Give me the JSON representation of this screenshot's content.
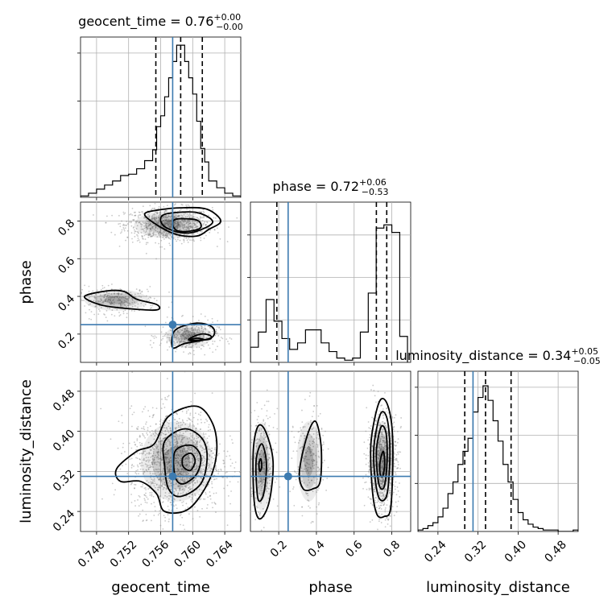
{
  "chart_data": {
    "type": "corner",
    "parameters": [
      "geocent_time",
      "phase",
      "luminosity_distance"
    ],
    "truth": {
      "geocent_time": 0.7575,
      "phase": 0.25,
      "luminosity_distance": 0.31
    },
    "colors": {
      "truth": "#3d7bb0",
      "hist": "#000000",
      "grid": "#b0b0b0",
      "points": "#888888"
    },
    "titles": [
      {
        "param": "geocent_time",
        "text": "geocent_time = 0.76",
        "plus": "+0.00",
        "minus": "−0.00"
      },
      {
        "param": "phase",
        "text": "phase = 0.72",
        "plus": "+0.06",
        "minus": "−0.53"
      },
      {
        "param": "luminosity_distance",
        "text": "luminosity_distance = 0.34",
        "plus": "+0.05",
        "minus": "−0.05"
      }
    ],
    "axes": {
      "geocent_time": {
        "range": [
          0.746,
          0.766
        ],
        "ticks": [
          0.748,
          0.752,
          0.756,
          0.76,
          0.764
        ],
        "tick_labels": [
          "0.748",
          "0.752",
          "0.756",
          "0.760",
          "0.764"
        ]
      },
      "phase": {
        "range": [
          0.05,
          0.9
        ],
        "ticks_x": [
          0.2,
          0.4,
          0.6,
          0.8
        ],
        "tick_labels_x": [
          "0.2",
          "0.4",
          "0.6",
          "0.8"
        ],
        "ticks_y": [
          0.2,
          0.4,
          0.6,
          0.8
        ],
        "tick_labels_y": [
          "0.2",
          "0.4",
          "0.6",
          "0.8"
        ]
      },
      "luminosity_distance": {
        "range": [
          0.2,
          0.52
        ],
        "ticks": [
          0.24,
          0.32,
          0.4,
          0.48
        ],
        "tick_labels": [
          "0.24",
          "0.32",
          "0.40",
          "0.48"
        ]
      }
    },
    "hist_geocent_time": {
      "edges": [
        0.746,
        0.747,
        0.748,
        0.749,
        0.75,
        0.751,
        0.752,
        0.753,
        0.754,
        0.755,
        0.7555,
        0.756,
        0.7565,
        0.757,
        0.7575,
        0.758,
        0.7585,
        0.759,
        0.7595,
        0.76,
        0.7605,
        0.761,
        0.7615,
        0.762,
        0.763,
        0.764,
        0.765,
        0.766
      ],
      "counts": [
        1,
        3,
        6,
        9,
        12,
        16,
        17,
        21,
        27,
        35,
        52,
        60,
        74,
        88,
        100,
        112,
        112,
        100,
        88,
        76,
        56,
        36,
        26,
        12,
        7,
        3,
        1
      ],
      "quantile_lines": [
        0.7554,
        0.7585,
        0.7612
      ],
      "ylim": [
        0,
        118
      ]
    },
    "hist_phase": {
      "edges": [
        0.05,
        0.092,
        0.133,
        0.175,
        0.217,
        0.258,
        0.3,
        0.342,
        0.383,
        0.425,
        0.467,
        0.508,
        0.55,
        0.592,
        0.633,
        0.675,
        0.717,
        0.758,
        0.8,
        0.842,
        0.883
      ],
      "counts": [
        14,
        28,
        58,
        38,
        22,
        12,
        18,
        30,
        30,
        18,
        10,
        4,
        2,
        4,
        28,
        64,
        124,
        127,
        120,
        24
      ],
      "quantile_lines": [
        0.19,
        0.718,
        0.773
      ],
      "ylim": [
        0,
        148
      ]
    },
    "hist_luminosity_distance": {
      "edges": [
        0.2,
        0.21,
        0.22,
        0.23,
        0.24,
        0.25,
        0.26,
        0.27,
        0.28,
        0.29,
        0.3,
        0.31,
        0.32,
        0.33,
        0.34,
        0.35,
        0.36,
        0.37,
        0.38,
        0.39,
        0.4,
        0.41,
        0.42,
        0.43,
        0.44,
        0.45,
        0.46,
        0.47,
        0.48,
        0.49,
        0.5,
        0.51,
        0.52
      ],
      "counts": [
        1,
        2,
        4,
        6,
        10,
        16,
        26,
        34,
        46,
        55,
        64,
        82,
        92,
        100,
        90,
        76,
        62,
        46,
        34,
        22,
        13,
        8,
        5,
        3,
        2,
        1,
        1,
        1,
        0,
        0,
        0,
        1
      ],
      "quantile_lines": [
        0.2935,
        0.335,
        0.386
      ],
      "ylim": [
        0,
        110
      ]
    },
    "contours_phase_vs_geocent_time": [
      [
        [
          0.7555,
          0.857
        ],
        [
          0.7588,
          0.87
        ],
        [
          0.7618,
          0.862
        ],
        [
          0.7635,
          0.8
        ],
        [
          0.762,
          0.755
        ],
        [
          0.7605,
          0.72
        ],
        [
          0.758,
          0.728
        ],
        [
          0.7555,
          0.78
        ],
        [
          0.754,
          0.835
        ]
      ],
      [
        [
          0.757,
          0.84
        ],
        [
          0.7605,
          0.845
        ],
        [
          0.7625,
          0.795
        ],
        [
          0.7605,
          0.745
        ],
        [
          0.7585,
          0.738
        ],
        [
          0.7565,
          0.77
        ],
        [
          0.756,
          0.815
        ]
      ],
      [
        [
          0.758,
          0.81
        ],
        [
          0.7605,
          0.805
        ],
        [
          0.761,
          0.765
        ],
        [
          0.7595,
          0.745
        ],
        [
          0.758,
          0.75
        ],
        [
          0.7575,
          0.785
        ]
      ],
      [
        [
          0.7465,
          0.4
        ],
        [
          0.7495,
          0.43
        ],
        [
          0.7515,
          0.425
        ],
        [
          0.753,
          0.385
        ],
        [
          0.7555,
          0.357
        ],
        [
          0.7555,
          0.328
        ],
        [
          0.752,
          0.335
        ],
        [
          0.7485,
          0.355
        ]
      ],
      [
        [
          0.7575,
          0.128
        ],
        [
          0.7578,
          0.22
        ],
        [
          0.7605,
          0.258
        ],
        [
          0.7625,
          0.235
        ],
        [
          0.7623,
          0.18
        ],
        [
          0.759,
          0.15
        ]
      ],
      [
        [
          0.7595,
          0.17
        ],
        [
          0.761,
          0.2
        ],
        [
          0.7622,
          0.192
        ],
        [
          0.762,
          0.172
        ]
      ],
      [
        [
          0.7595,
          0.168
        ],
        [
          0.7605,
          0.178
        ],
        [
          0.7613,
          0.172
        ],
        [
          0.7605,
          0.163
        ]
      ]
    ],
    "contours_luminosity_distance_vs_geocent_time": [
      [
        [
          0.7505,
          0.325
        ],
        [
          0.753,
          0.36
        ],
        [
          0.7552,
          0.375
        ],
        [
          0.757,
          0.43
        ],
        [
          0.7605,
          0.45
        ],
        [
          0.7625,
          0.415
        ],
        [
          0.763,
          0.36
        ],
        [
          0.762,
          0.3
        ],
        [
          0.7595,
          0.245
        ],
        [
          0.7565,
          0.24
        ],
        [
          0.7555,
          0.275
        ],
        [
          0.7535,
          0.3
        ],
        [
          0.751,
          0.3
        ]
      ],
      [
        [
          0.7565,
          0.38
        ],
        [
          0.759,
          0.405
        ],
        [
          0.7612,
          0.385
        ],
        [
          0.7618,
          0.345
        ],
        [
          0.761,
          0.295
        ],
        [
          0.7585,
          0.27
        ],
        [
          0.757,
          0.285
        ],
        [
          0.7565,
          0.33
        ]
      ],
      [
        [
          0.7578,
          0.36
        ],
        [
          0.7598,
          0.372
        ],
        [
          0.761,
          0.35
        ],
        [
          0.7605,
          0.315
        ],
        [
          0.7588,
          0.295
        ],
        [
          0.7578,
          0.31
        ]
      ],
      [
        [
          0.7588,
          0.348
        ],
        [
          0.7598,
          0.356
        ],
        [
          0.7603,
          0.34
        ],
        [
          0.7597,
          0.322
        ],
        [
          0.7588,
          0.33
        ]
      ]
    ],
    "contours_luminosity_distance_vs_phase": [
      [
        [
          0.065,
          0.36
        ],
        [
          0.09,
          0.41
        ],
        [
          0.13,
          0.4
        ],
        [
          0.17,
          0.34
        ],
        [
          0.15,
          0.26
        ],
        [
          0.1,
          0.225
        ],
        [
          0.07,
          0.26
        ]
      ],
      [
        [
          0.08,
          0.34
        ],
        [
          0.11,
          0.375
        ],
        [
          0.135,
          0.335
        ],
        [
          0.12,
          0.275
        ],
        [
          0.09,
          0.265
        ]
      ],
      [
        [
          0.095,
          0.335
        ],
        [
          0.105,
          0.345
        ],
        [
          0.11,
          0.33
        ],
        [
          0.1,
          0.32
        ]
      ],
      [
        [
          0.31,
          0.32
        ],
        [
          0.35,
          0.39
        ],
        [
          0.395,
          0.42
        ],
        [
          0.425,
          0.37
        ],
        [
          0.42,
          0.3
        ],
        [
          0.38,
          0.285
        ],
        [
          0.33,
          0.285
        ]
      ],
      [
        [
          0.69,
          0.38
        ],
        [
          0.735,
          0.46
        ],
        [
          0.78,
          0.45
        ],
        [
          0.805,
          0.38
        ],
        [
          0.795,
          0.25
        ],
        [
          0.76,
          0.23
        ],
        [
          0.72,
          0.235
        ],
        [
          0.695,
          0.29
        ]
      ],
      [
        [
          0.705,
          0.37
        ],
        [
          0.74,
          0.435
        ],
        [
          0.775,
          0.425
        ],
        [
          0.79,
          0.36
        ],
        [
          0.775,
          0.275
        ],
        [
          0.735,
          0.265
        ],
        [
          0.71,
          0.31
        ]
      ],
      [
        [
          0.72,
          0.37
        ],
        [
          0.745,
          0.41
        ],
        [
          0.77,
          0.395
        ],
        [
          0.775,
          0.34
        ],
        [
          0.76,
          0.29
        ],
        [
          0.735,
          0.29
        ],
        [
          0.72,
          0.33
        ]
      ],
      [
        [
          0.738,
          0.34
        ],
        [
          0.755,
          0.36
        ],
        [
          0.762,
          0.335
        ],
        [
          0.752,
          0.31
        ],
        [
          0.738,
          0.315
        ]
      ]
    ],
    "density_blobs": [
      {
        "panel": "phase_vs_geocent_time",
        "cx": 0.757,
        "cy": 0.78,
        "sx": 0.0027,
        "sy": 0.045,
        "n": 900
      },
      {
        "panel": "phase_vs_geocent_time",
        "cx": 0.7505,
        "cy": 0.38,
        "sx": 0.0025,
        "sy": 0.035,
        "n": 280
      },
      {
        "panel": "phase_vs_geocent_time",
        "cx": 0.7595,
        "cy": 0.19,
        "sx": 0.0018,
        "sy": 0.04,
        "n": 380
      },
      {
        "panel": "luminosity_distance_vs_geocent_time",
        "cx": 0.758,
        "cy": 0.34,
        "sx": 0.0028,
        "sy": 0.05,
        "n": 1500
      },
      {
        "panel": "luminosity_distance_vs_phase",
        "cx": 0.11,
        "cy": 0.33,
        "sx": 0.035,
        "sy": 0.055,
        "n": 320
      },
      {
        "panel": "luminosity_distance_vs_phase",
        "cx": 0.36,
        "cy": 0.34,
        "sx": 0.04,
        "sy": 0.05,
        "n": 220
      },
      {
        "panel": "luminosity_distance_vs_phase",
        "cx": 0.75,
        "cy": 0.34,
        "sx": 0.04,
        "sy": 0.05,
        "n": 900
      }
    ]
  }
}
